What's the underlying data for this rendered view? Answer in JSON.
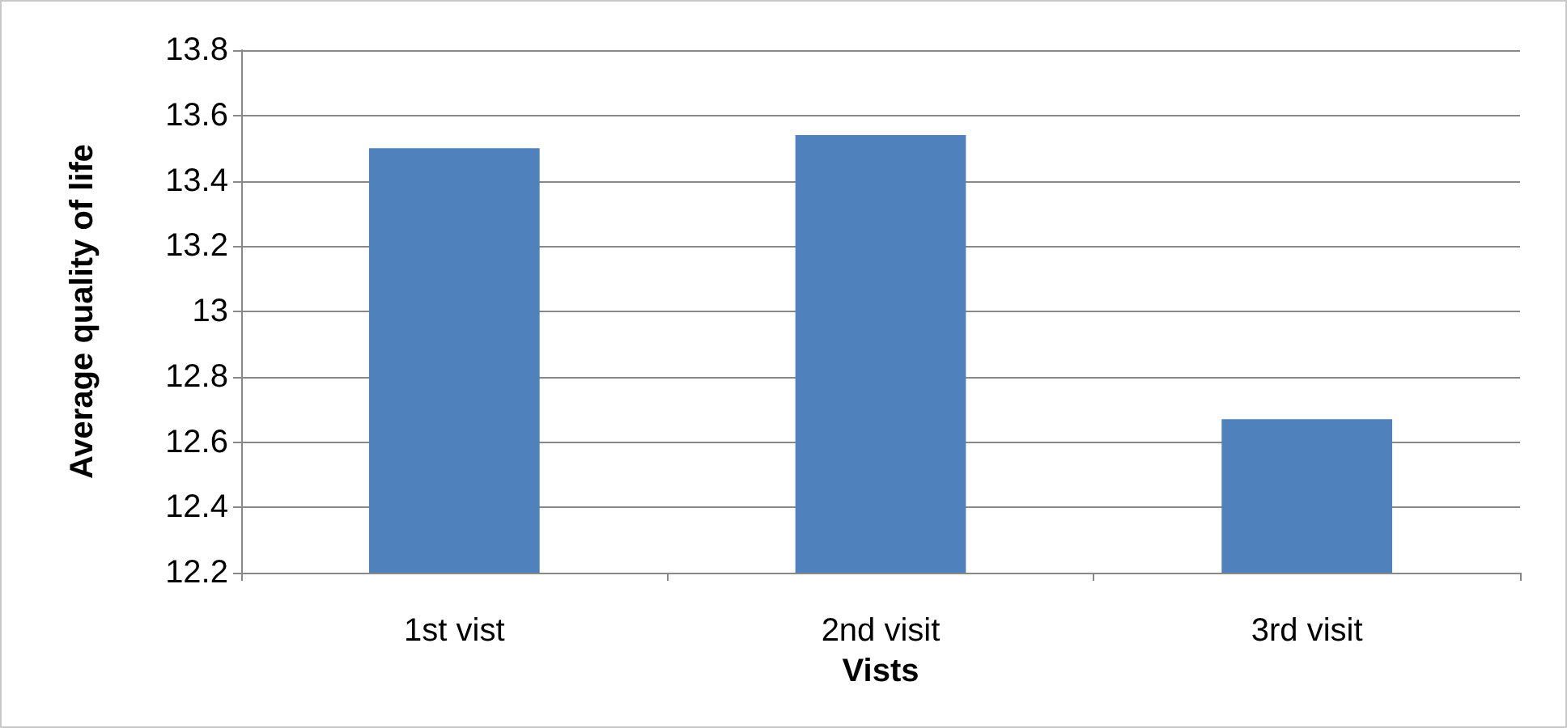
{
  "chart_data": {
    "type": "bar",
    "xlabel": "Vists",
    "ylabel": "Average quality of life",
    "categories": [
      "1st vist",
      "2nd visit",
      "3rd visit"
    ],
    "values": [
      13.5,
      13.54,
      12.67
    ],
    "color": "#4f81bd",
    "ylim": [
      12.2,
      13.8
    ],
    "yticks": [
      12.2,
      12.4,
      12.6,
      12.8,
      13,
      13.2,
      13.4,
      13.6,
      13.8
    ],
    "grid": "y"
  }
}
